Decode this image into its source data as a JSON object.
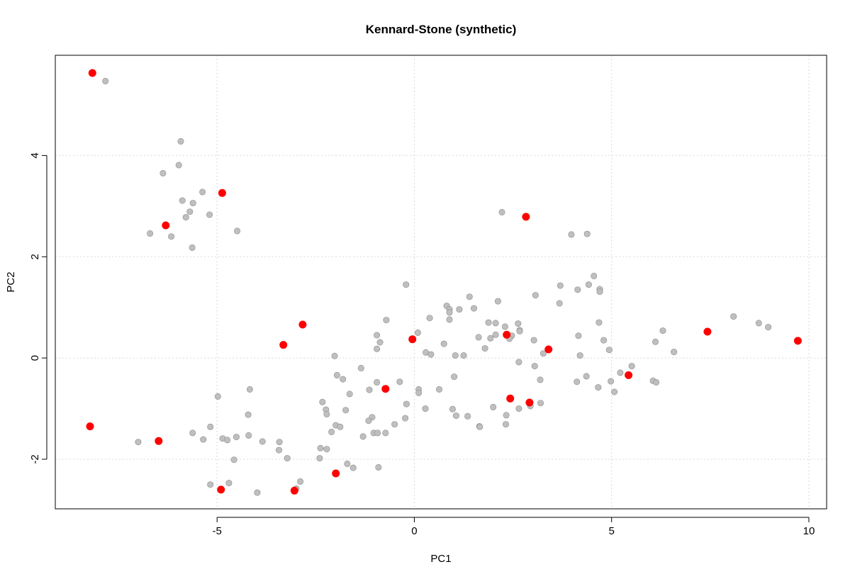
{
  "chart_data": {
    "type": "scatter",
    "title": "Kennard-Stone (synthetic)",
    "xlabel": "PC1",
    "ylabel": "PC2",
    "xlim": [
      -9.1,
      10.45
    ],
    "ylim": [
      -2.98,
      5.98
    ],
    "xticks": [
      -5,
      0,
      5,
      10
    ],
    "yticks": [
      -2,
      0,
      2,
      4
    ],
    "grid": true,
    "legend": "none",
    "colors": {
      "background": "#bfbfbf",
      "selected": "#ff0000"
    },
    "series": [
      {
        "points": [
          [
            -7.83,
            5.47
          ],
          [
            -5.92,
            4.28
          ],
          [
            -5.97,
            3.81
          ],
          [
            -6.37,
            3.65
          ],
          [
            -5.88,
            3.11
          ],
          [
            -5.37,
            3.28
          ],
          [
            -5.61,
            3.06
          ],
          [
            -5.69,
            2.89
          ],
          [
            -5.79,
            2.78
          ],
          [
            -5.19,
            2.83
          ],
          [
            -4.49,
            2.51
          ],
          [
            -6.7,
            2.46
          ],
          [
            -6.16,
            2.4
          ],
          [
            -5.63,
            2.18
          ],
          [
            -0.21,
            1.45
          ],
          [
            2.22,
            2.88
          ],
          [
            3.98,
            2.44
          ],
          [
            4.38,
            2.45
          ],
          [
            4.55,
            1.62
          ],
          [
            4.42,
            1.45
          ],
          [
            3.7,
            1.43
          ],
          [
            4.14,
            1.35
          ],
          [
            4.7,
            1.36
          ],
          [
            4.7,
            1.31
          ],
          [
            3.07,
            1.24
          ],
          [
            1.4,
            1.21
          ],
          [
            2.12,
            1.12
          ],
          [
            3.68,
            1.08
          ],
          [
            0.82,
            1.03
          ],
          [
            1.51,
            0.98
          ],
          [
            0.89,
            0.96
          ],
          [
            1.14,
            0.96
          ],
          [
            0.89,
            0.9
          ],
          [
            0.39,
            0.79
          ],
          [
            0.89,
            0.76
          ],
          [
            -0.71,
            0.75
          ],
          [
            1.88,
            0.7
          ],
          [
            2.06,
            0.69
          ],
          [
            2.63,
            0.68
          ],
          [
            4.68,
            0.7
          ],
          [
            2.3,
            0.62
          ],
          [
            6.3,
            0.54
          ],
          [
            2.67,
            0.55
          ],
          [
            2.67,
            0.53
          ],
          [
            0.09,
            0.5
          ],
          [
            2.06,
            0.46
          ],
          [
            1.63,
            0.41
          ],
          [
            2.47,
            0.44
          ],
          [
            2.41,
            0.38
          ],
          [
            1.93,
            0.39
          ],
          [
            4.16,
            0.44
          ],
          [
            8.09,
            0.82
          ],
          [
            8.73,
            0.69
          ],
          [
            8.97,
            0.61
          ],
          [
            4.8,
            0.35
          ],
          [
            3.03,
            0.35
          ],
          [
            6.11,
            0.32
          ],
          [
            -0.87,
            0.31
          ],
          [
            0.75,
            0.28
          ],
          [
            -0.95,
            0.18
          ],
          [
            1.79,
            0.19
          ],
          [
            4.94,
            0.16
          ],
          [
            0.29,
            0.11
          ],
          [
            0.42,
            0.07
          ],
          [
            6.58,
            0.12
          ],
          [
            1.04,
            0.05
          ],
          [
            1.25,
            0.05
          ],
          [
            3.27,
            0.09
          ],
          [
            4.2,
            0.05
          ],
          [
            -2.02,
            0.04
          ],
          [
            -0.95,
            0.45
          ],
          [
            2.65,
            -0.08
          ],
          [
            3.05,
            -0.16
          ],
          [
            5.51,
            -0.16
          ],
          [
            -1.35,
            -0.2
          ],
          [
            5.22,
            -0.29
          ],
          [
            -1.96,
            -0.34
          ],
          [
            1.01,
            -0.37
          ],
          [
            4.36,
            -0.36
          ],
          [
            -1.81,
            -0.42
          ],
          [
            3.19,
            -0.43
          ],
          [
            4.12,
            -0.47
          ],
          [
            4.98,
            -0.46
          ],
          [
            6.05,
            -0.45
          ],
          [
            6.13,
            -0.48
          ],
          [
            -0.37,
            -0.47
          ],
          [
            4.66,
            -0.58
          ],
          [
            -4.17,
            -0.62
          ],
          [
            -1.14,
            -0.63
          ],
          [
            0.11,
            -0.62
          ],
          [
            0.63,
            -0.62
          ],
          [
            5.07,
            -0.67
          ],
          [
            0.11,
            -0.69
          ],
          [
            -1.64,
            -0.71
          ],
          [
            -4.98,
            -0.76
          ],
          [
            -2.33,
            -0.87
          ],
          [
            3.2,
            -0.89
          ],
          [
            -0.2,
            -0.91
          ],
          [
            -0.95,
            -0.48
          ],
          [
            0.97,
            -1.01
          ],
          [
            0.28,
            -1.0
          ],
          [
            -2.24,
            -1.02
          ],
          [
            2.0,
            -0.97
          ],
          [
            2.65,
            -1.0
          ],
          [
            -1.74,
            -1.03
          ],
          [
            -2.22,
            -1.11
          ],
          [
            -4.21,
            -1.12
          ],
          [
            -1.07,
            -1.17
          ],
          [
            1.06,
            -1.14
          ],
          [
            1.35,
            -1.15
          ],
          [
            2.94,
            -0.95
          ],
          [
            2.33,
            -1.13
          ],
          [
            -0.23,
            -1.19
          ],
          [
            -1.16,
            -1.24
          ],
          [
            -5.17,
            -1.36
          ],
          [
            -1.99,
            -1.33
          ],
          [
            -1.88,
            -1.36
          ],
          [
            1.65,
            -1.35
          ],
          [
            1.66,
            -1.36
          ],
          [
            2.32,
            -1.31
          ],
          [
            -0.5,
            -1.31
          ],
          [
            -2.1,
            -1.46
          ],
          [
            -1.03,
            -1.48
          ],
          [
            -0.93,
            -1.48
          ],
          [
            -0.73,
            -1.48
          ],
          [
            -5.62,
            -1.48
          ],
          [
            -4.2,
            -1.53
          ],
          [
            -4.51,
            -1.56
          ],
          [
            -1.3,
            -1.55
          ],
          [
            -4.86,
            -1.59
          ],
          [
            -5.35,
            -1.61
          ],
          [
            -4.74,
            -1.62
          ],
          [
            -7.0,
            -1.66
          ],
          [
            -3.42,
            -1.66
          ],
          [
            -3.85,
            -1.65
          ],
          [
            -3.43,
            -1.82
          ],
          [
            -2.38,
            -1.78
          ],
          [
            -2.22,
            -1.8
          ],
          [
            -3.22,
            -1.98
          ],
          [
            -2.4,
            -1.98
          ],
          [
            -4.57,
            -2.01
          ],
          [
            -1.7,
            -2.09
          ],
          [
            -1.55,
            -2.17
          ],
          [
            -0.91,
            -2.16
          ],
          [
            -2.89,
            -2.44
          ],
          [
            -5.17,
            -2.5
          ],
          [
            -4.7,
            -2.47
          ],
          [
            -2.99,
            -2.58
          ],
          [
            -3.98,
            -2.66
          ]
        ]
      },
      {
        "points": [
          [
            -8.16,
            5.63
          ],
          [
            -8.22,
            -1.35
          ],
          [
            -4.87,
            3.26
          ],
          [
            -6.3,
            2.62
          ],
          [
            -6.48,
            -1.64
          ],
          [
            -4.9,
            -2.6
          ],
          [
            -3.32,
            0.26
          ],
          [
            -2.83,
            0.66
          ],
          [
            -3.04,
            -2.62
          ],
          [
            -1.99,
            -2.28
          ],
          [
            -0.73,
            -0.61
          ],
          [
            -0.05,
            0.37
          ],
          [
            2.34,
            0.46
          ],
          [
            2.43,
            -0.8
          ],
          [
            2.83,
            2.79
          ],
          [
            2.92,
            -0.88
          ],
          [
            3.4,
            0.17
          ],
          [
            5.43,
            -0.34
          ],
          [
            7.43,
            0.52
          ],
          [
            9.72,
            0.34
          ]
        ]
      }
    ]
  }
}
